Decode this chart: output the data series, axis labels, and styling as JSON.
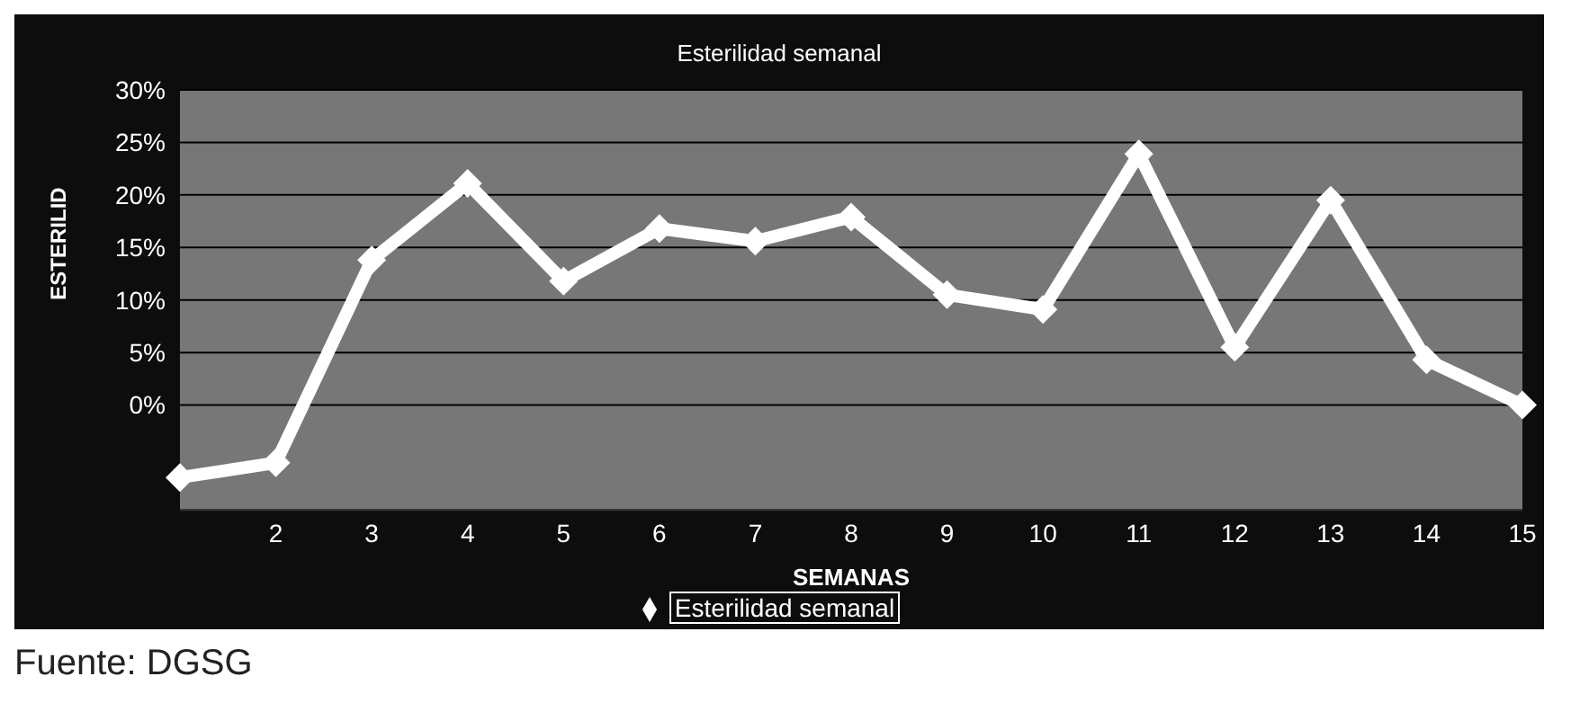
{
  "chart_data": {
    "type": "line",
    "title": "Esterilidad semanal",
    "xlabel": "SEMANAS",
    "ylabel": "ESTERILID",
    "categories": [
      null,
      "2",
      "3",
      "4",
      "5",
      "6",
      "7",
      "8",
      "9",
      "10",
      "11",
      "12",
      "13",
      "14",
      "15"
    ],
    "series": [
      {
        "name": "Esterilidad semanal",
        "color": "#ffffff",
        "values": [
          -6.9,
          -5.5,
          13.8,
          21.1,
          11.8,
          16.8,
          15.6,
          17.9,
          10.5,
          9.1,
          23.9,
          5.5,
          19.5,
          4.3,
          0
        ]
      }
    ],
    "ylim": [
      -10,
      30
    ],
    "yticks": [
      {
        "value": 0,
        "label": "0%"
      },
      {
        "value": 5,
        "label": "5%"
      },
      {
        "value": 10,
        "label": "10%"
      },
      {
        "value": 15,
        "label": "15%"
      },
      {
        "value": 20,
        "label": "20%"
      },
      {
        "value": 25,
        "label": "25%"
      },
      {
        "value": 30,
        "label": "30%"
      }
    ],
    "grid": "y",
    "legend": "bottom",
    "marker": "diamond",
    "line_style": "solid",
    "annotations": [
      "Fuente: DGSG"
    ]
  }
}
